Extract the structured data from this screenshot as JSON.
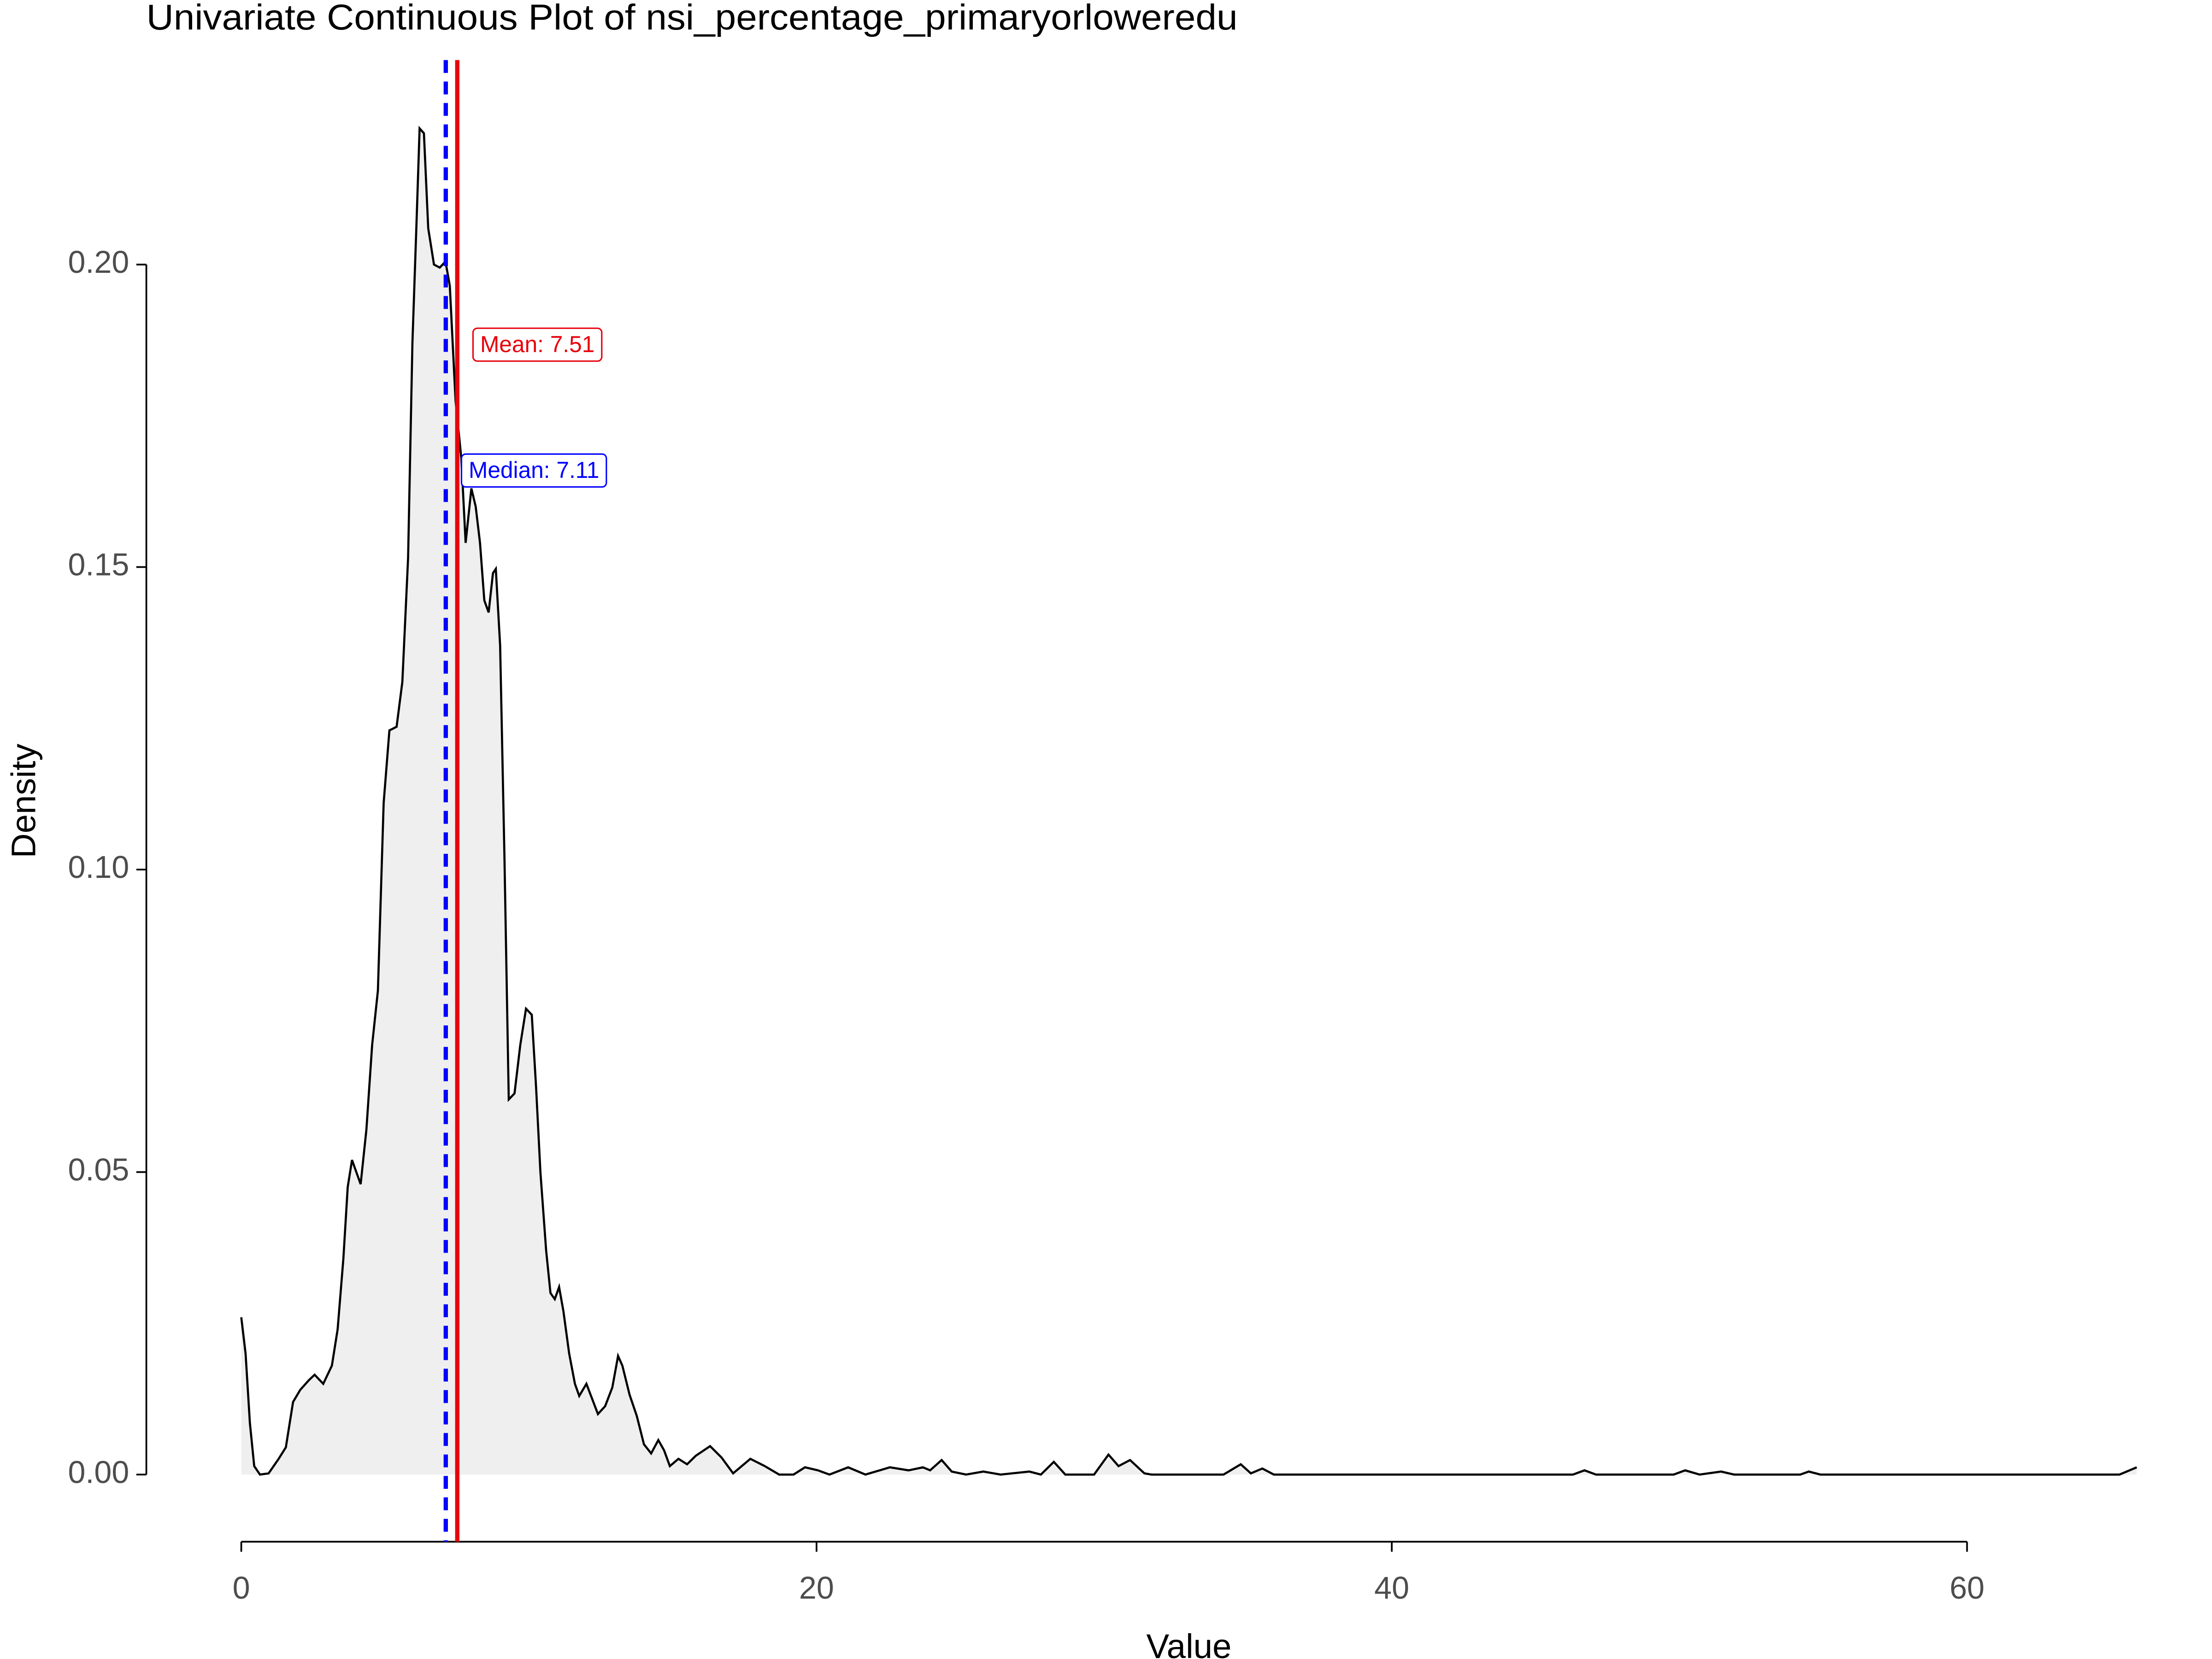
{
  "chart_data": {
    "type": "density",
    "title": "Univariate Continuous Plot of nsi_percentage_primaryorloweredu",
    "x_label": "Value",
    "y_label": "Density",
    "x": [
      0,
      0.15,
      0.3,
      0.45,
      0.65,
      0.95,
      1.3,
      1.55,
      1.8,
      2.05,
      2.35,
      2.55,
      2.85,
      3.15,
      3.35,
      3.55,
      3.7,
      3.85,
      4.0,
      4.15,
      4.35,
      4.55,
      4.75,
      4.95,
      5.15,
      5.4,
      5.6,
      5.8,
      5.95,
      6.1,
      6.2,
      6.35,
      6.5,
      6.7,
      6.9,
      7.1,
      7.25,
      7.45,
      7.65,
      7.8,
      8.0,
      8.15,
      8.3,
      8.45,
      8.6,
      8.75,
      8.85,
      9.0,
      9.15,
      9.3,
      9.5,
      9.7,
      9.9,
      10.1,
      10.25,
      10.4,
      10.6,
      10.75,
      10.9,
      11.05,
      11.2,
      11.4,
      11.6,
      11.75,
      12.0,
      12.2,
      12.4,
      12.65,
      12.9,
      13.1,
      13.25,
      13.5,
      13.75,
      14.0,
      14.25,
      14.5,
      14.7,
      14.9,
      15.2,
      15.5,
      15.8,
      16.3,
      16.7,
      17.1,
      17.7,
      18.2,
      18.7,
      19.2,
      19.6,
      20.05,
      20.45,
      21.1,
      21.7,
      22.55,
      23.2,
      23.7,
      23.95,
      24.35,
      24.7,
      25.2,
      25.8,
      26.4,
      27.4,
      27.8,
      28.25,
      28.65,
      29.65,
      30.15,
      30.5,
      30.9,
      31.4,
      31.65,
      34.15,
      34.75,
      35.1,
      35.5,
      35.9,
      46.3,
      46.7,
      47.1,
      49.8,
      50.2,
      50.7,
      51.45,
      51.9,
      54.2,
      54.5,
      54.9,
      65.3,
      65.9
    ],
    "values": [
      0.026,
      0.02,
      0.0085,
      0.0014,
      0,
      0.0002,
      0.0026,
      0.0045,
      0.012,
      0.014,
      0.0156,
      0.0165,
      0.015,
      0.018,
      0.024,
      0.0357,
      0.0475,
      0.052,
      0.05,
      0.048,
      0.057,
      0.071,
      0.08,
      0.111,
      0.123,
      0.1236,
      0.131,
      0.1515,
      0.187,
      0.208,
      0.2225,
      0.2217,
      0.206,
      0.2,
      0.1995,
      0.2005,
      0.1965,
      0.1775,
      0.168,
      0.154,
      0.163,
      0.16,
      0.154,
      0.1445,
      0.1425,
      0.149,
      0.1497,
      0.137,
      0.102,
      0.062,
      0.063,
      0.071,
      0.077,
      0.076,
      0.064,
      0.05,
      0.037,
      0.03,
      0.029,
      0.031,
      0.027,
      0.02,
      0.015,
      0.013,
      0.015,
      0.0125,
      0.01,
      0.0113,
      0.0144,
      0.0196,
      0.018,
      0.0132,
      0.0097,
      0.005,
      0.0035,
      0.0057,
      0.004,
      0.0014,
      0.0026,
      0.0017,
      0.0031,
      0.0047,
      0.0028,
      0.0002,
      0.0026,
      0.0014,
      0,
      0,
      0.0012,
      0.0007,
      0,
      0.0012,
      0,
      0.0012,
      0.0007,
      0.0012,
      0.0007,
      0.0024,
      0.0005,
      0,
      0.0005,
      0,
      0.0005,
      0,
      0.0021,
      0,
      0,
      0.0033,
      0.0014,
      0.0024,
      0.0002,
      0,
      0,
      0.0017,
      0.0002,
      0.001,
      0,
      0,
      0.0007,
      0,
      0,
      0.0007,
      0,
      0.0005,
      0,
      0,
      0.0005,
      0,
      0,
      0.0012
    ],
    "color": "#000000",
    "fill": "#efefef",
    "mean": {
      "value": 7.51,
      "label": "Mean: 7.51",
      "color": "#e8000b"
    },
    "median": {
      "value": 7.11,
      "label": "Median: 7.11",
      "color": "#0000ff"
    },
    "xlim": [
      -3.3,
      68.5
    ],
    "ylim": [
      -0.0111,
      0.2338
    ],
    "xticks": [
      0,
      20,
      40,
      60
    ],
    "yticks": [
      {
        "value": 0,
        "label": "0.00"
      },
      0.05,
      {
        "value": 0.1,
        "label": "0.10"
      },
      0.15,
      {
        "value": 0.2,
        "label": "0.20"
      }
    ],
    "grid": false
  }
}
